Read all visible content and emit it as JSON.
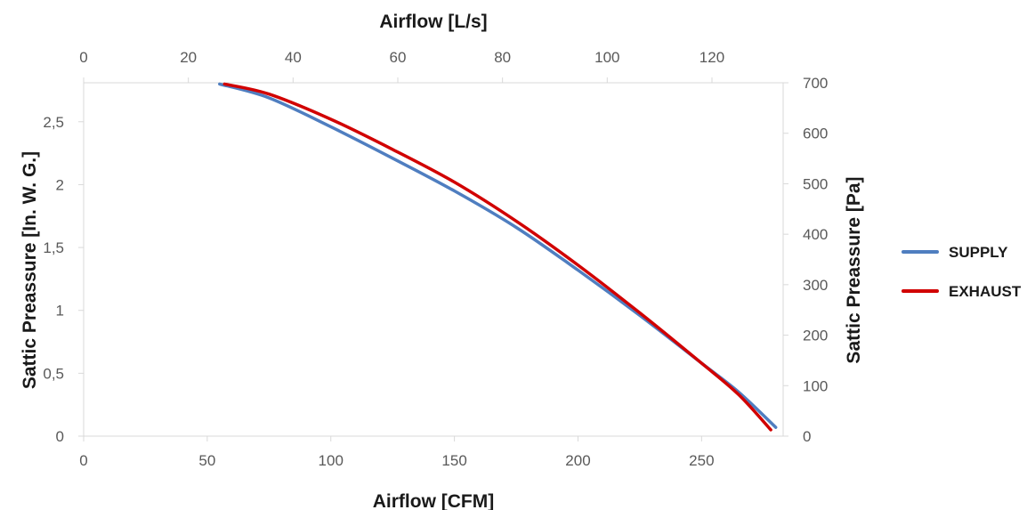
{
  "chart_data": {
    "type": "line",
    "top_xlabel": "Airflow [L/s]",
    "bottom_xlabel": "Airflow [CFM]",
    "left_ylabel": "Sattic Preassure [In. W. G.]",
    "right_ylabel": "Sattic Preassure [Pa]",
    "bottom_xlim": [
      0,
      283
    ],
    "top_xlim": [
      0,
      133.6
    ],
    "left_ylim": [
      0,
      2.81
    ],
    "right_ylim": [
      0,
      700
    ],
    "bottom_ticks": [
      "0",
      "50",
      "100",
      "150",
      "200",
      "250"
    ],
    "bottom_tick_values": [
      0,
      50,
      100,
      150,
      200,
      250
    ],
    "top_ticks": [
      "0",
      "20",
      "40",
      "60",
      "80",
      "100",
      "120"
    ],
    "top_tick_values": [
      0,
      20,
      40,
      60,
      80,
      100,
      120
    ],
    "left_ticks": [
      "0",
      "0,5",
      "1",
      "1,5",
      "2",
      "2,5"
    ],
    "left_tick_values": [
      0,
      0.5,
      1,
      1.5,
      2,
      2.5
    ],
    "right_ticks": [
      "0",
      "100",
      "200",
      "300",
      "400",
      "500",
      "600",
      "700"
    ],
    "right_tick_values": [
      0,
      100,
      200,
      300,
      400,
      500,
      600,
      700
    ],
    "grid": false,
    "legend_position": "right",
    "series": [
      {
        "name": "SUPPLY",
        "color": "#4f7ec0",
        "points": [
          [
            55,
            2.8
          ],
          [
            75,
            2.69
          ],
          [
            100,
            2.46
          ],
          [
            125,
            2.21
          ],
          [
            150,
            1.95
          ],
          [
            175,
            1.66
          ],
          [
            200,
            1.32
          ],
          [
            225,
            0.96
          ],
          [
            250,
            0.58
          ],
          [
            265,
            0.35
          ],
          [
            280,
            0.07
          ]
        ]
      },
      {
        "name": "EXHAUST",
        "color": "#d10000",
        "points": [
          [
            57,
            2.8
          ],
          [
            75,
            2.72
          ],
          [
            100,
            2.52
          ],
          [
            125,
            2.28
          ],
          [
            150,
            2.02
          ],
          [
            175,
            1.71
          ],
          [
            200,
            1.36
          ],
          [
            225,
            0.98
          ],
          [
            250,
            0.58
          ],
          [
            265,
            0.33
          ],
          [
            278,
            0.05
          ]
        ]
      }
    ]
  }
}
